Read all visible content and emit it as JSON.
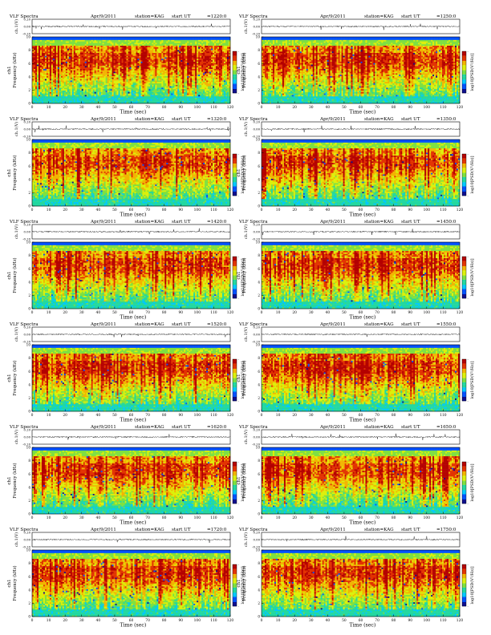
{
  "page": {
    "panel_header_prefix": "VLF Spectra",
    "date_label": "Apr/9/2011",
    "station_label": "station=KAG",
    "start_prefix": "start  UT",
    "waveform_ylabel": "ch.1(V)",
    "spectro_ylabel": "Frequency  (kHz)",
    "channel_label": "ch1",
    "xlabel": "Time  (sec)",
    "colorbar_label": "log10[PSD(V²/Hz)]"
  },
  "colors": {
    "background": "#ffffff",
    "axis": "#000000",
    "colormap": [
      "#0a0a8c",
      "#0050ff",
      "#00c8ff",
      "#22d8a0",
      "#7ee040",
      "#dcf00a",
      "#f2b400",
      "#e23200",
      "#b40000"
    ]
  },
  "chart_data": [
    {
      "type": "heatmap",
      "start_ut": "=1220:0",
      "waveform_yticks": [
        "0.20",
        "0.00",
        "-0.20"
      ],
      "waveform_ylim": [
        -0.2,
        0.2
      ],
      "frequency_yticks": [
        0,
        2,
        4,
        6,
        8,
        10
      ],
      "frequency_ylim": [
        0,
        10
      ],
      "x_ticks": [
        0,
        10,
        20,
        30,
        40,
        50,
        60,
        70,
        80,
        90,
        100,
        110,
        120
      ],
      "xlim": [
        0,
        120
      ],
      "colorbar_ticks": [
        "-",
        "",
        "",
        "",
        "-"
      ]
    },
    {
      "type": "heatmap",
      "start_ut": "=1250:0",
      "waveform_yticks": [
        "0.20",
        "0.00",
        "-0.20"
      ],
      "waveform_ylim": [
        -0.2,
        0.2
      ],
      "frequency_yticks": [
        0,
        2,
        4,
        6,
        8,
        10
      ],
      "frequency_ylim": [
        0,
        10
      ],
      "x_ticks": [
        0,
        10,
        20,
        30,
        40,
        50,
        60,
        70,
        80,
        90,
        100,
        110,
        120
      ],
      "xlim": [
        0,
        120
      ],
      "colorbar_ticks": [
        "-",
        "",
        "",
        "",
        "-"
      ]
    },
    {
      "type": "heatmap",
      "start_ut": "=1320:0",
      "waveform_yticks": [
        "0.20",
        "0.00",
        "-0.20"
      ],
      "waveform_ylim": [
        -0.2,
        0.2
      ],
      "frequency_yticks": [
        0,
        2,
        4,
        6,
        8,
        10
      ],
      "frequency_ylim": [
        0,
        10
      ],
      "x_ticks": [
        0,
        10,
        20,
        30,
        40,
        50,
        60,
        70,
        80,
        90,
        100,
        110,
        120
      ],
      "xlim": [
        0,
        120
      ],
      "colorbar_ticks": [
        "-",
        "",
        "",
        "",
        "-"
      ]
    },
    {
      "type": "heatmap",
      "start_ut": "=1350:0",
      "waveform_yticks": [
        "0.20",
        "0.00",
        "-0.20"
      ],
      "waveform_ylim": [
        -0.2,
        0.2
      ],
      "frequency_yticks": [
        0,
        2,
        4,
        6,
        8,
        10
      ],
      "frequency_ylim": [
        0,
        10
      ],
      "x_ticks": [
        0,
        10,
        20,
        30,
        40,
        50,
        60,
        70,
        80,
        90,
        100,
        110,
        120
      ],
      "xlim": [
        0,
        120
      ],
      "colorbar_ticks": [
        "-",
        "",
        "",
        "",
        "-"
      ]
    },
    {
      "type": "heatmap",
      "start_ut": "=1420:0",
      "waveform_yticks": [
        "0.20",
        "0.00",
        "-0.20"
      ],
      "waveform_ylim": [
        -0.2,
        0.2
      ],
      "frequency_yticks": [
        0,
        2,
        4,
        6,
        8,
        10
      ],
      "frequency_ylim": [
        0,
        10
      ],
      "x_ticks": [
        0,
        10,
        20,
        30,
        40,
        50,
        60,
        70,
        80,
        90,
        100,
        110,
        120
      ],
      "xlim": [
        0,
        120
      ],
      "colorbar_ticks": [
        "-",
        "",
        "",
        "",
        "-"
      ]
    },
    {
      "type": "heatmap",
      "start_ut": "=1450:0",
      "waveform_yticks": [
        "0.20",
        "0.00",
        "-0.20"
      ],
      "waveform_ylim": [
        -0.2,
        0.2
      ],
      "frequency_yticks": [
        0,
        2,
        4,
        6,
        8,
        10
      ],
      "frequency_ylim": [
        0,
        10
      ],
      "x_ticks": [
        0,
        10,
        20,
        30,
        40,
        50,
        60,
        70,
        80,
        90,
        100,
        110,
        120
      ],
      "xlim": [
        0,
        120
      ],
      "colorbar_ticks": [
        "-",
        "",
        "",
        "",
        "-"
      ]
    },
    {
      "type": "heatmap",
      "start_ut": "=1520:0",
      "waveform_yticks": [
        "0.20",
        "0.00",
        "-0.20"
      ],
      "waveform_ylim": [
        -0.2,
        0.2
      ],
      "frequency_yticks": [
        0,
        2,
        4,
        6,
        8,
        10
      ],
      "frequency_ylim": [
        0,
        10
      ],
      "x_ticks": [
        0,
        10,
        20,
        30,
        40,
        50,
        60,
        70,
        80,
        90,
        100,
        110,
        120
      ],
      "xlim": [
        0,
        120
      ],
      "colorbar_ticks": [
        "-",
        "",
        "",
        "",
        "-"
      ]
    },
    {
      "type": "heatmap",
      "start_ut": "=1550:0",
      "waveform_yticks": [
        "0.20",
        "0.00",
        "-0.20"
      ],
      "waveform_ylim": [
        -0.2,
        0.2
      ],
      "frequency_yticks": [
        0,
        2,
        4,
        6,
        8,
        10
      ],
      "frequency_ylim": [
        0,
        10
      ],
      "x_ticks": [
        0,
        10,
        20,
        30,
        40,
        50,
        60,
        70,
        80,
        90,
        100,
        110,
        120
      ],
      "xlim": [
        0,
        120
      ],
      "colorbar_ticks": [
        "-",
        "",
        "",
        "",
        "-"
      ]
    },
    {
      "type": "heatmap",
      "start_ut": "=1620:0",
      "waveform_yticks": [
        "0.20",
        "0.00",
        "-0.20"
      ],
      "waveform_ylim": [
        -0.2,
        0.2
      ],
      "frequency_yticks": [
        0,
        2,
        4,
        6,
        8,
        10
      ],
      "frequency_ylim": [
        0,
        10
      ],
      "x_ticks": [
        0,
        10,
        20,
        30,
        40,
        50,
        60,
        70,
        80,
        90,
        100,
        110,
        120
      ],
      "xlim": [
        0,
        120
      ],
      "colorbar_ticks": [
        "-",
        "",
        "",
        "",
        "-"
      ]
    },
    {
      "type": "heatmap",
      "start_ut": "=1650:0",
      "waveform_yticks": [
        "0.20",
        "0.00",
        "-0.20"
      ],
      "waveform_ylim": [
        -0.2,
        0.2
      ],
      "frequency_yticks": [
        0,
        2,
        4,
        6,
        8,
        10
      ],
      "frequency_ylim": [
        0,
        10
      ],
      "x_ticks": [
        0,
        10,
        20,
        30,
        40,
        50,
        60,
        70,
        80,
        90,
        100,
        110,
        120
      ],
      "xlim": [
        0,
        120
      ],
      "colorbar_ticks": [
        "-",
        "",
        "",
        "",
        "-"
      ]
    },
    {
      "type": "heatmap",
      "start_ut": "=1720:0",
      "waveform_yticks": [
        "0.20",
        "0.00",
        "-0.20"
      ],
      "waveform_ylim": [
        -0.2,
        0.2
      ],
      "frequency_yticks": [
        0,
        2,
        4,
        6,
        8,
        10
      ],
      "frequency_ylim": [
        0,
        10
      ],
      "x_ticks": [
        0,
        10,
        20,
        30,
        40,
        50,
        60,
        70,
        80,
        90,
        100,
        110,
        120
      ],
      "xlim": [
        0,
        120
      ],
      "colorbar_ticks": [
        "-",
        "",
        "",
        "",
        "-"
      ]
    },
    {
      "type": "heatmap",
      "start_ut": "=1750:0",
      "waveform_yticks": [
        "0.20",
        "0.00",
        "-0.20"
      ],
      "waveform_ylim": [
        -0.2,
        0.2
      ],
      "frequency_yticks": [
        0,
        2,
        4,
        6,
        8,
        10
      ],
      "frequency_ylim": [
        0,
        10
      ],
      "x_ticks": [
        0,
        10,
        20,
        30,
        40,
        50,
        60,
        70,
        80,
        90,
        100,
        110,
        120
      ],
      "xlim": [
        0,
        120
      ],
      "colorbar_ticks": [
        "-",
        "",
        "",
        "",
        "-"
      ]
    }
  ]
}
